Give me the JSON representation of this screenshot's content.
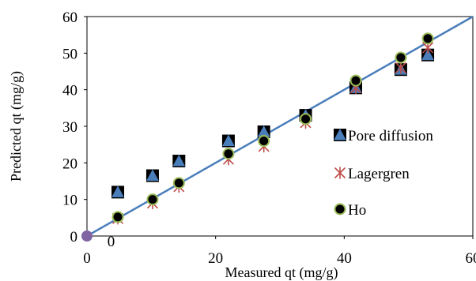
{
  "chart_data": {
    "type": "scatter",
    "xlabel": "Measured qt (mg/g)",
    "ylabel": "Predicted qt (mg/g)",
    "xlim": [
      0,
      60
    ],
    "ylim": [
      0,
      60
    ],
    "x_ticks": [
      "0",
      "20",
      "40",
      "60"
    ],
    "y_ticks": [
      "0",
      "10",
      "20",
      "30",
      "40",
      "50",
      "60"
    ],
    "grid": false,
    "legend_position": "right",
    "series": [
      {
        "name": "Pore diffusion",
        "marker": "triangle",
        "x": [
          4.8,
          10.2,
          14.3,
          22.0,
          27.5,
          34.0,
          41.8,
          48.8,
          53.0
        ],
        "y": [
          12.0,
          16.5,
          20.5,
          26.0,
          28.5,
          33.0,
          40.5,
          45.5,
          49.5
        ]
      },
      {
        "name": "Lagergren",
        "marker": "asterisk",
        "x": [
          4.8,
          10.2,
          14.3,
          22.0,
          27.5,
          34.0,
          41.8,
          48.8,
          53.0
        ],
        "y": [
          4.8,
          9.0,
          13.5,
          21.0,
          24.5,
          31.0,
          40.5,
          46.0,
          51.5
        ]
      },
      {
        "name": "Ho",
        "marker": "circle",
        "x": [
          4.8,
          10.2,
          14.3,
          22.0,
          27.5,
          34.0,
          41.8,
          48.8,
          53.0
        ],
        "y": [
          5.2,
          10.0,
          14.5,
          22.5,
          26.0,
          32.0,
          42.5,
          48.8,
          54.0
        ]
      }
    ],
    "reference_line": {
      "x": [
        0,
        60
      ],
      "y": [
        0,
        60
      ]
    },
    "origin_point": {
      "x": 0,
      "y": 0
    },
    "annotations": [
      {
        "text": "0",
        "x": 1.2,
        "y": 0
      }
    ],
    "colors": {
      "line": "#4a7ebb",
      "triangle_fill": "#4a7ebb",
      "triangle_back": "#000000",
      "asterisk": "#be4b48",
      "circle_fill": "#000000",
      "circle_edge": "#9bbb59",
      "origin": "#8064a2"
    }
  }
}
